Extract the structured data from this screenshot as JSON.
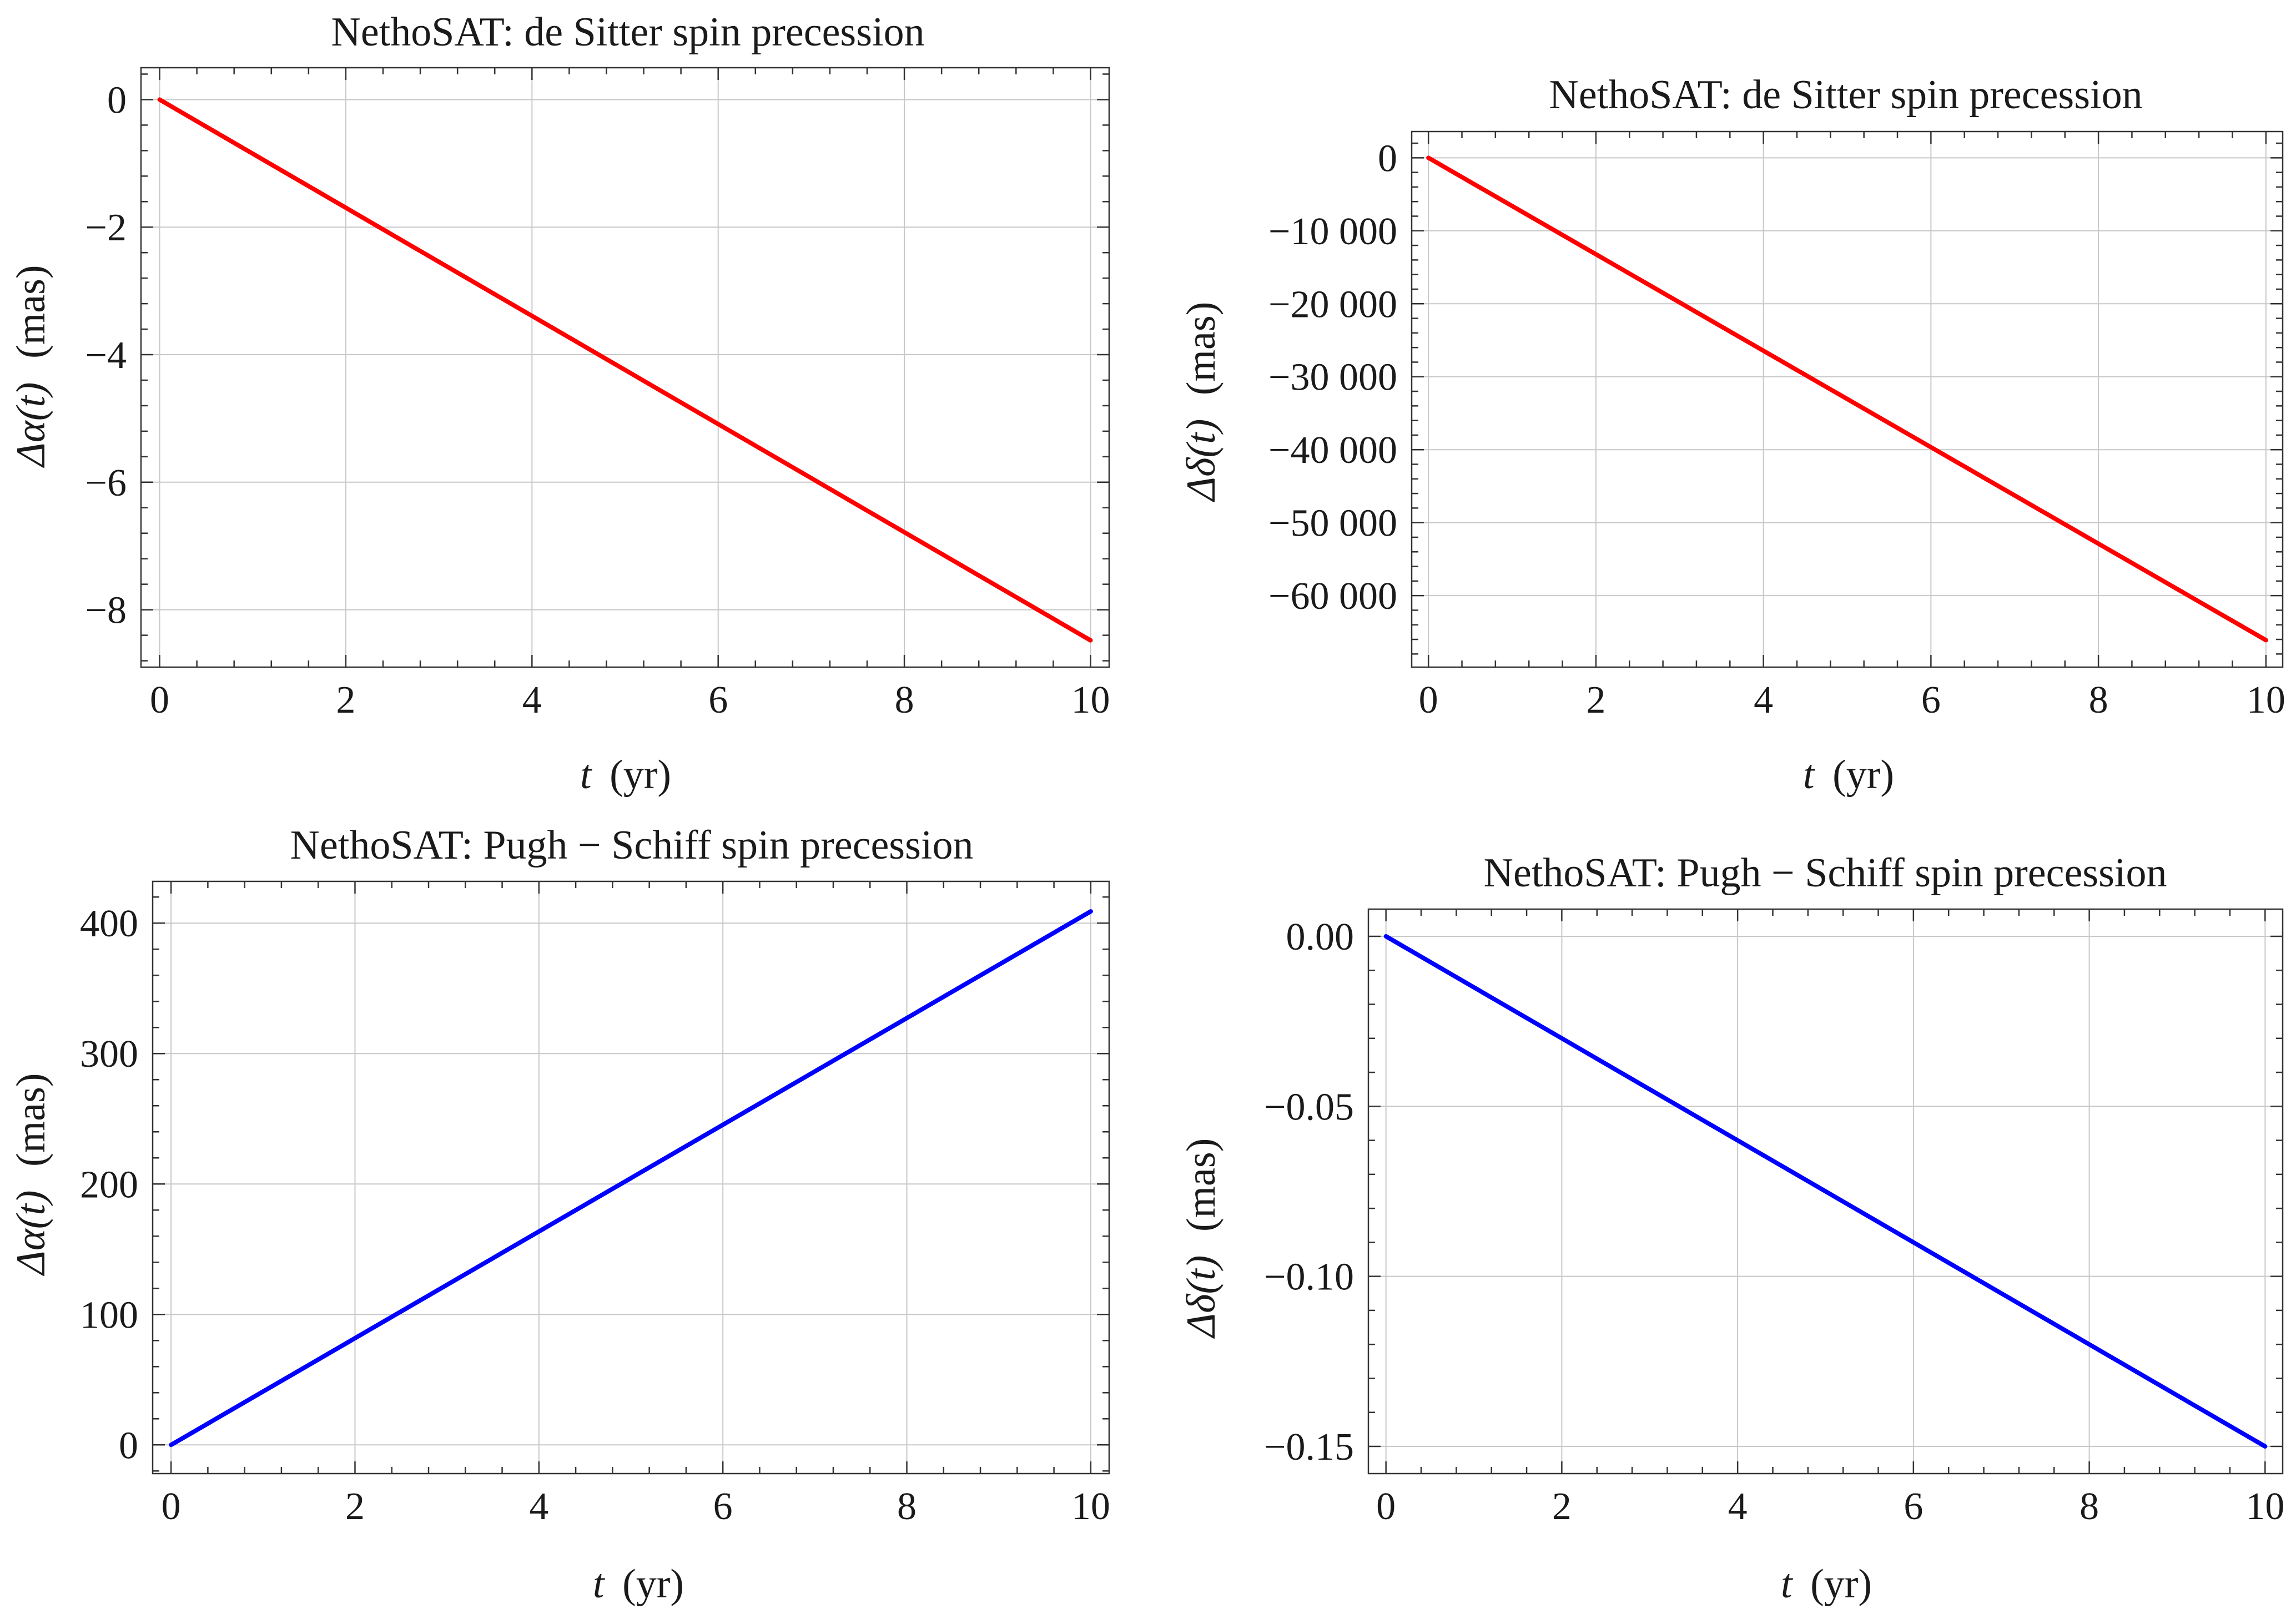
{
  "chart_data": [
    {
      "type": "line",
      "title": "NethoSAT: de Sitter spin precession",
      "ylabel_symbol": "Δα(t)",
      "ylabel_unit": "(mas)",
      "xlabel_symbol": "t",
      "xlabel_unit": "(yr)",
      "x": [
        0,
        10
      ],
      "series": [
        {
          "name": "Δα(t)",
          "color": "#ff0000",
          "x": [
            0,
            10
          ],
          "values": [
            0,
            -8.48
          ]
        }
      ],
      "xlim": [
        -0.2,
        10.2
      ],
      "ylim": [
        -8.9,
        0.5
      ],
      "xticks": [
        0,
        2,
        4,
        6,
        8,
        10
      ],
      "xtick_labels": [
        "0",
        "2",
        "4",
        "6",
        "8",
        "10"
      ],
      "yticks": [
        0,
        -2,
        -4,
        -6,
        -8
      ],
      "ytick_labels": [
        "0",
        "−2",
        "−4",
        "−6",
        "−8"
      ],
      "grid": true
    },
    {
      "type": "line",
      "title": "NethoSAT: de Sitter spin precession",
      "ylabel_symbol": "Δδ(t)",
      "ylabel_unit": "(mas)",
      "xlabel_symbol": "t",
      "xlabel_unit": "(yr)",
      "x": [
        0,
        10
      ],
      "series": [
        {
          "name": "Δδ(t)",
          "color": "#ff0000",
          "x": [
            0,
            10
          ],
          "values": [
            0,
            -66100
          ]
        }
      ],
      "xlim": [
        -0.2,
        10.2
      ],
      "ylim": [
        -69800,
        3600
      ],
      "xticks": [
        0,
        2,
        4,
        6,
        8,
        10
      ],
      "xtick_labels": [
        "0",
        "2",
        "4",
        "6",
        "8",
        "10"
      ],
      "yticks": [
        0,
        -10000,
        -20000,
        -30000,
        -40000,
        -50000,
        -60000
      ],
      "ytick_labels": [
        "0",
        "−10 000",
        "−20 000",
        "−30 000",
        "−40 000",
        "−50 000",
        "−60 000"
      ],
      "grid": true
    },
    {
      "type": "line",
      "title": "NethoSAT: Pugh − Schiff spin precession",
      "ylabel_symbol": "Δα(t)",
      "ylabel_unit": "(mas)",
      "xlabel_symbol": "t",
      "xlabel_unit": "(yr)",
      "x": [
        0,
        10
      ],
      "series": [
        {
          "name": "Δα(t)",
          "color": "#0000ff",
          "x": [
            0,
            10
          ],
          "values": [
            0,
            409
          ]
        }
      ],
      "xlim": [
        -0.2,
        10.2
      ],
      "ylim": [
        -22,
        432
      ],
      "xticks": [
        0,
        2,
        4,
        6,
        8,
        10
      ],
      "xtick_labels": [
        "0",
        "2",
        "4",
        "6",
        "8",
        "10"
      ],
      "yticks": [
        0,
        100,
        200,
        300,
        400
      ],
      "ytick_labels": [
        "0",
        "100",
        "200",
        "300",
        "400"
      ],
      "grid": true
    },
    {
      "type": "line",
      "title": "NethoSAT: Pugh − Schiff spin precession",
      "ylabel_symbol": "Δδ(t)",
      "ylabel_unit": "(mas)",
      "xlabel_symbol": "t",
      "xlabel_unit": "(yr)",
      "x": [
        0,
        10
      ],
      "series": [
        {
          "name": "Δδ(t)",
          "color": "#0000ff",
          "x": [
            0,
            10
          ],
          "values": [
            0,
            -0.15
          ]
        }
      ],
      "xlim": [
        -0.2,
        10.2
      ],
      "ylim": [
        -0.158,
        0.008
      ],
      "xticks": [
        0,
        2,
        4,
        6,
        8,
        10
      ],
      "xtick_labels": [
        "0",
        "2",
        "4",
        "6",
        "8",
        "10"
      ],
      "yticks": [
        0,
        -0.05,
        -0.1,
        -0.15
      ],
      "ytick_labels": [
        "0.00",
        "−0.05",
        "−0.10",
        "−0.15"
      ],
      "grid": true
    }
  ]
}
